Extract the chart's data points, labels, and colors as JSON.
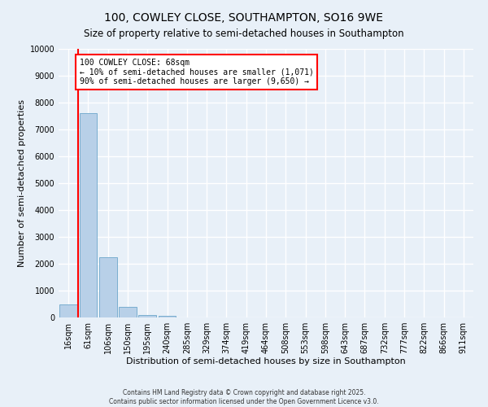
{
  "title": "100, COWLEY CLOSE, SOUTHAMPTON, SO16 9WE",
  "subtitle": "Size of property relative to semi-detached houses in Southampton",
  "xlabel": "Distribution of semi-detached houses by size in Southampton",
  "ylabel": "Number of semi-detached properties",
  "categories": [
    "16sqm",
    "61sqm",
    "106sqm",
    "150sqm",
    "195sqm",
    "240sqm",
    "285sqm",
    "329sqm",
    "374sqm",
    "419sqm",
    "464sqm",
    "508sqm",
    "553sqm",
    "598sqm",
    "643sqm",
    "687sqm",
    "732sqm",
    "777sqm",
    "822sqm",
    "866sqm",
    "911sqm"
  ],
  "values": [
    500,
    7600,
    2250,
    400,
    100,
    50,
    0,
    0,
    0,
    0,
    0,
    0,
    0,
    0,
    0,
    0,
    0,
    0,
    0,
    0,
    0
  ],
  "bar_color": "#b8d0e8",
  "bar_edge_color": "#7aaed0",
  "annotation_title": "100 COWLEY CLOSE: 68sqm",
  "annotation_line1": "← 10% of semi-detached houses are smaller (1,071)",
  "annotation_line2": "90% of semi-detached houses are larger (9,650) →",
  "footer1": "Contains HM Land Registry data © Crown copyright and database right 2025.",
  "footer2": "Contains public sector information licensed under the Open Government Licence v3.0.",
  "ylim": [
    0,
    10000
  ],
  "yticks": [
    0,
    1000,
    2000,
    3000,
    4000,
    5000,
    6000,
    7000,
    8000,
    9000,
    10000
  ],
  "bg_color": "#e8f0f8",
  "grid_color": "#ffffff",
  "title_fontsize": 10,
  "subtitle_fontsize": 8.5,
  "axis_label_fontsize": 8,
  "tick_fontsize": 7,
  "red_line_x": 0.5
}
